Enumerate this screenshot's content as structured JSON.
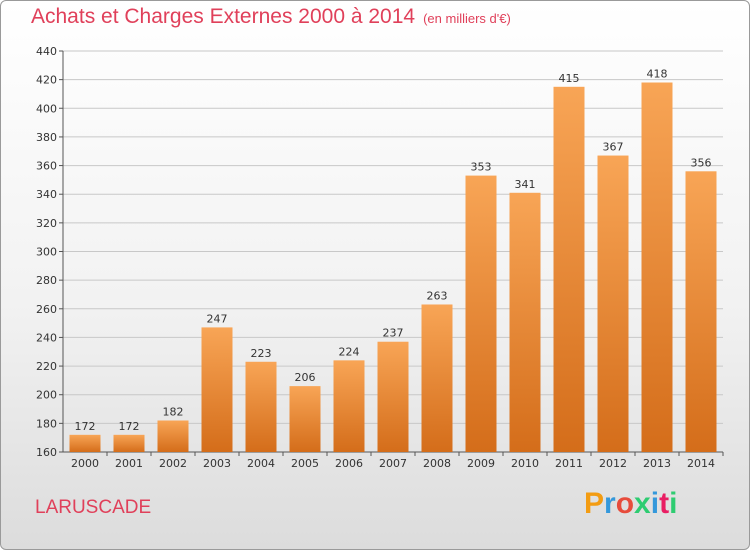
{
  "header": {
    "title": "Achats et Charges Externes 2000 à 2014",
    "subtitle": "(en milliers d'€)"
  },
  "footer": {
    "place": "LARUSCADE",
    "logo_text": "Proxiti",
    "logo_colors": [
      "#f39c12",
      "#3498db",
      "#e74c3c",
      "#2ecc71",
      "#3498db",
      "#e91e63",
      "#2ecc71"
    ]
  },
  "colors": {
    "title": "#e0405a",
    "bar_light": "#f8a556",
    "bar_dark": "#d46d1a",
    "grid": "#c8c8c8"
  },
  "chart_data": {
    "type": "bar",
    "title": "Achats et Charges Externes 2000 à 2014",
    "subtitle": "(en milliers d'€)",
    "categories": [
      "2000",
      "2001",
      "2002",
      "2003",
      "2004",
      "2005",
      "2006",
      "2007",
      "2008",
      "2009",
      "2010",
      "2011",
      "2012",
      "2013",
      "2014"
    ],
    "values": [
      172,
      172,
      182,
      247,
      223,
      206,
      224,
      237,
      263,
      353,
      341,
      415,
      367,
      418,
      356
    ],
    "ylim": [
      160,
      440
    ],
    "yticks": [
      160,
      180,
      200,
      220,
      240,
      260,
      280,
      300,
      320,
      340,
      360,
      380,
      400,
      420,
      440
    ],
    "xlabel": "",
    "ylabel": "",
    "grid": true,
    "data_labels": true
  }
}
